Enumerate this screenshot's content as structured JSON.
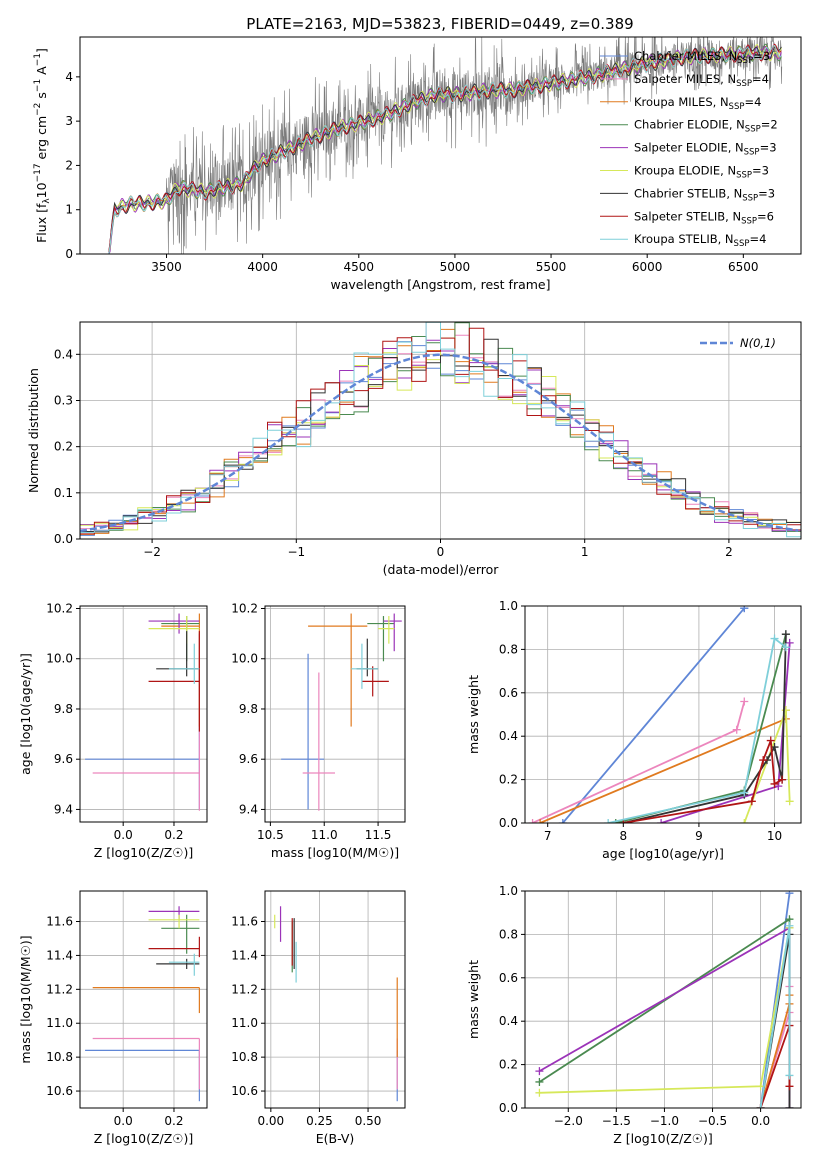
{
  "figure": {
    "title": "PLATE=2163, MJD=53823, FIBERID=0449, z=0.389"
  },
  "colors": {
    "Chabrier MILES": "#5f86d6",
    "Salpeter MILES": "#ec86bd",
    "Kroupa MILES": "#e07a1f",
    "Chabrier ELODIE": "#4a8a50",
    "Salpeter ELODIE": "#9b33b8",
    "Kroupa ELODIE": "#d6e85a",
    "Chabrier STELIB": "#333333",
    "Salpeter STELIB": "#b01515",
    "Kroupa STELIB": "#7fcfd9",
    "data": "#7a7a7a"
  },
  "chart_data": [
    {
      "id": "spectrum",
      "type": "line",
      "xlabel": "wavelength [Angstrom, rest frame]",
      "ylabel_parts": [
        "Flux [f",
        "λ",
        "10",
        "−17",
        " erg cm",
        "−2",
        " s",
        "−1",
        " A",
        "−1",
        "]"
      ],
      "xlim": [
        3050,
        6800
      ],
      "ylim": [
        0,
        4.9
      ],
      "xticks": [
        3500,
        4000,
        4500,
        5000,
        5500,
        6000,
        6500
      ],
      "yticks": [
        0,
        1,
        2,
        3,
        4
      ],
      "legend_position": "top-right",
      "legend": [
        {
          "model": "Chabrier MILES",
          "label": "Chabrier MILES, N",
          "sub": "SSP",
          "n": "=3"
        },
        {
          "model": "Salpeter MILES",
          "label": "Salpeter MILES, N",
          "sub": "SSP",
          "n": "=4"
        },
        {
          "model": "Kroupa MILES",
          "label": "Kroupa MILES, N",
          "sub": "SSP",
          "n": "=4"
        },
        {
          "model": "Chabrier ELODIE",
          "label": "Chabrier ELODIE, N",
          "sub": "SSP",
          "n": "=2"
        },
        {
          "model": "Salpeter ELODIE",
          "label": "Salpeter ELODIE, N",
          "sub": "SSP",
          "n": "=3"
        },
        {
          "model": "Kroupa ELODIE",
          "label": "Kroupa ELODIE, N",
          "sub": "SSP",
          "n": "=3"
        },
        {
          "model": "Chabrier STELIB",
          "label": "Chabrier STELIB, N",
          "sub": "SSP",
          "n": "=3"
        },
        {
          "model": "Salpeter STELIB",
          "label": "Salpeter STELIB, N",
          "sub": "SSP",
          "n": "=6"
        },
        {
          "model": "Kroupa STELIB",
          "label": "Kroupa STELIB, N",
          "sub": "SSP",
          "n": "=4"
        }
      ],
      "continuum_knots": {
        "x": [
          3200,
          3230,
          3300,
          3400,
          3500,
          3560,
          3700,
          3800,
          3900,
          3950,
          4000,
          4100,
          4250,
          4400,
          4500,
          4650,
          4800,
          4900,
          5000,
          5200,
          5300,
          5500,
          5700,
          5900,
          6000,
          6200,
          6400,
          6600,
          6700
        ],
        "y": [
          0.0,
          1.0,
          1.12,
          1.15,
          1.2,
          1.5,
          1.4,
          1.5,
          1.6,
          1.9,
          2.1,
          2.3,
          2.6,
          2.85,
          2.95,
          3.15,
          3.45,
          3.6,
          3.6,
          3.7,
          3.7,
          3.85,
          4.0,
          4.2,
          4.3,
          4.45,
          4.5,
          4.55,
          4.55
        ]
      }
    },
    {
      "id": "residuals",
      "type": "histogram",
      "xlabel": "(data-model)/error",
      "ylabel": "Normed distribution",
      "xlim": [
        -2.5,
        2.5
      ],
      "ylim": [
        0,
        0.47
      ],
      "xticks": [
        -2,
        -1,
        0,
        1,
        2
      ],
      "yticks": [
        0.0,
        0.1,
        0.2,
        0.3,
        0.4
      ],
      "bin_width": 0.1,
      "legend_position": "top-right",
      "reference": {
        "label": "N(0,1)",
        "mu": 0,
        "sigma": 1
      }
    },
    {
      "id": "age_vs_Z",
      "type": "errorbar",
      "xlabel": "Z [log10(Z/Z☉)]",
      "ylabel": "age [log10(age/yr)]",
      "xlim": [
        -0.17,
        0.33
      ],
      "ylim": [
        9.35,
        10.21
      ],
      "xticks": [
        0.0,
        0.2
      ],
      "yticks": [
        9.4,
        9.6,
        9.8,
        10.0,
        10.2
      ],
      "points": [
        {
          "model": "Chabrier MILES",
          "x": 0.3,
          "xerr": [
            0.45,
            0.0
          ],
          "y": 9.6,
          "yerr": [
            0.2,
            0.5
          ]
        },
        {
          "model": "Salpeter MILES",
          "x": 0.3,
          "xerr": [
            0.42,
            0.0
          ],
          "y": 9.545,
          "yerr": [
            0.15,
            0.55
          ]
        },
        {
          "model": "Kroupa MILES",
          "x": 0.3,
          "xerr": [
            0.15,
            0.0
          ],
          "y": 10.13,
          "yerr": [
            0.4,
            0.05
          ]
        },
        {
          "model": "Chabrier ELODIE",
          "x": 0.25,
          "xerr": [
            0.1,
            0.05
          ],
          "y": 10.14,
          "yerr": [
            0.15,
            0.03
          ]
        },
        {
          "model": "Salpeter ELODIE",
          "x": 0.22,
          "xerr": [
            0.12,
            0.08
          ],
          "y": 10.15,
          "yerr": [
            0.05,
            0.03
          ]
        },
        {
          "model": "Kroupa ELODIE",
          "x": 0.25,
          "xerr": [
            0.15,
            0.05
          ],
          "y": 10.12,
          "yerr": [
            0.06,
            0.05
          ]
        },
        {
          "model": "Chabrier STELIB",
          "x": 0.25,
          "xerr": [
            0.12,
            0.05
          ],
          "y": 9.96,
          "yerr": [
            0.03,
            0.15
          ]
        },
        {
          "model": "Salpeter STELIB",
          "x": 0.3,
          "xerr": [
            0.2,
            0.0
          ],
          "y": 9.91,
          "yerr": [
            0.2,
            0.2
          ]
        },
        {
          "model": "Kroupa STELIB",
          "x": 0.28,
          "xerr": [
            0.1,
            0.02
          ],
          "y": 9.96,
          "yerr": [
            0.06,
            0.1
          ]
        }
      ]
    },
    {
      "id": "age_vs_mass",
      "type": "errorbar",
      "xlabel": "mass [log10(M/M☉)]",
      "xlim": [
        10.45,
        11.75
      ],
      "ylim": [
        9.35,
        10.21
      ],
      "xticks": [
        10.5,
        11.0,
        11.5
      ],
      "yticks": [
        9.4,
        9.6,
        9.8,
        10.0,
        10.2
      ],
      "points": [
        {
          "model": "Chabrier MILES",
          "x": 10.85,
          "xerr": [
            0.25,
            0.15
          ],
          "y": 9.6,
          "yerr": [
            0.2,
            0.42
          ]
        },
        {
          "model": "Salpeter MILES",
          "x": 10.95,
          "xerr": [
            0.15,
            0.15
          ],
          "y": 9.545,
          "yerr": [
            0.15,
            0.4
          ]
        },
        {
          "model": "Kroupa MILES",
          "x": 11.25,
          "xerr": [
            0.4,
            0.15
          ],
          "y": 10.13,
          "yerr": [
            0.4,
            0.05
          ]
        },
        {
          "model": "Chabrier ELODIE",
          "x": 11.55,
          "xerr": [
            0.15,
            0.1
          ],
          "y": 10.14,
          "yerr": [
            0.15,
            0.03
          ]
        },
        {
          "model": "Salpeter ELODIE",
          "x": 11.65,
          "xerr": [
            0.1,
            0.07
          ],
          "y": 10.15,
          "yerr": [
            0.12,
            0.03
          ]
        },
        {
          "model": "Kroupa ELODIE",
          "x": 11.6,
          "xerr": [
            0.1,
            0.05
          ],
          "y": 10.12,
          "yerr": [
            0.06,
            0.05
          ]
        },
        {
          "model": "Chabrier STELIB",
          "x": 11.4,
          "xerr": [
            0.1,
            0.1
          ],
          "y": 9.96,
          "yerr": [
            0.03,
            0.12
          ]
        },
        {
          "model": "Salpeter STELIB",
          "x": 11.45,
          "xerr": [
            0.1,
            0.15
          ],
          "y": 9.91,
          "yerr": [
            0.06,
            0.06
          ]
        },
        {
          "model": "Kroupa STELIB",
          "x": 11.35,
          "xerr": [
            0.1,
            0.15
          ],
          "y": 9.96,
          "yerr": [
            0.08,
            0.1
          ]
        }
      ]
    },
    {
      "id": "weight_vs_age",
      "type": "line",
      "xlabel": "age [log10(age/yr)]",
      "ylabel": "mass weight",
      "xlim": [
        6.7,
        10.35
      ],
      "ylim": [
        0,
        1.0
      ],
      "xticks": [
        7,
        8,
        9,
        10
      ],
      "yticks": [
        0.0,
        0.2,
        0.4,
        0.6,
        0.8,
        1.0
      ],
      "series": [
        {
          "model": "Chabrier MILES",
          "x": [
            7.2,
            9.6,
            9.6
          ],
          "y": [
            0.0,
            0.99,
            0.99
          ]
        },
        {
          "model": "Salpeter MILES",
          "x": [
            6.8,
            9.5,
            9.6
          ],
          "y": [
            0.0,
            0.43,
            0.56
          ]
        },
        {
          "model": "Kroupa MILES",
          "x": [
            6.9,
            10.15,
            10.15
          ],
          "y": [
            0.0,
            0.48,
            0.52
          ]
        },
        {
          "model": "Chabrier ELODIE",
          "x": [
            7.9,
            9.6,
            10.15
          ],
          "y": [
            0.0,
            0.15,
            0.87
          ]
        },
        {
          "model": "Salpeter ELODIE",
          "x": [
            8.5,
            10.05,
            10.2
          ],
          "y": [
            0.0,
            0.17,
            0.83
          ]
        },
        {
          "model": "Kroupa ELODIE",
          "x": [
            9.6,
            10.15,
            10.2
          ],
          "y": [
            0.0,
            0.52,
            0.1
          ]
        },
        {
          "model": "Chabrier STELIB",
          "x": [
            8.0,
            9.6,
            9.9,
            10.0,
            10.1,
            10.15
          ],
          "y": [
            0.0,
            0.13,
            0.29,
            0.35,
            0.2,
            0.87
          ]
        },
        {
          "model": "Salpeter STELIB",
          "x": [
            8.0,
            9.7,
            9.85,
            9.95,
            10.0,
            10.1
          ],
          "y": [
            0.0,
            0.1,
            0.29,
            0.38,
            0.18,
            0.2
          ]
        },
        {
          "model": "Kroupa STELIB",
          "x": [
            7.8,
            9.6,
            10.0,
            10.15
          ],
          "y": [
            0.0,
            0.14,
            0.85,
            0.81
          ]
        }
      ]
    },
    {
      "id": "mass_vs_Z",
      "type": "errorbar",
      "xlabel": "Z [log10(Z/Z☉)]",
      "ylabel": "mass [log10(M/M☉)]",
      "xlim": [
        -0.17,
        0.33
      ],
      "ylim": [
        10.5,
        11.78
      ],
      "xticks": [
        0.0,
        0.2
      ],
      "yticks": [
        10.6,
        10.8,
        11.0,
        11.2,
        11.4,
        11.6
      ],
      "points": [
        {
          "model": "Chabrier MILES",
          "x": 0.3,
          "xerr": [
            0.45,
            0.0
          ],
          "y": 10.84,
          "yerr": [
            0.3,
            0.0
          ]
        },
        {
          "model": "Salpeter MILES",
          "x": 0.3,
          "xerr": [
            0.42,
            0.0
          ],
          "y": 10.91,
          "yerr": [
            0.3,
            0.0
          ]
        },
        {
          "model": "Kroupa MILES",
          "x": 0.3,
          "xerr": [
            0.42,
            0.0
          ],
          "y": 11.21,
          "yerr": [
            0.15,
            0.0
          ]
        },
        {
          "model": "Chabrier ELODIE",
          "x": 0.25,
          "xerr": [
            0.1,
            0.05
          ],
          "y": 11.56,
          "yerr": [
            0.15,
            0.08
          ]
        },
        {
          "model": "Salpeter ELODIE",
          "x": 0.22,
          "xerr": [
            0.12,
            0.08
          ],
          "y": 11.66,
          "yerr": [
            0.05,
            0.03
          ]
        },
        {
          "model": "Kroupa ELODIE",
          "x": 0.22,
          "xerr": [
            0.12,
            0.08
          ],
          "y": 11.61,
          "yerr": [
            0.05,
            0.03
          ]
        },
        {
          "model": "Chabrier STELIB",
          "x": 0.25,
          "xerr": [
            0.12,
            0.05
          ],
          "y": 11.35,
          "yerr": [
            0.03,
            0.03
          ]
        },
        {
          "model": "Salpeter STELIB",
          "x": 0.3,
          "xerr": [
            0.2,
            0.0
          ],
          "y": 11.44,
          "yerr": [
            0.05,
            0.07
          ]
        },
        {
          "model": "Kroupa STELIB",
          "x": 0.28,
          "xerr": [
            0.1,
            0.02
          ],
          "y": 11.36,
          "yerr": [
            0.08,
            0.05
          ]
        }
      ]
    },
    {
      "id": "mass_vs_ebv",
      "type": "errorbar",
      "xlabel": "E(B-V)",
      "xlim": [
        -0.03,
        0.69
      ],
      "ylim": [
        10.5,
        11.78
      ],
      "xticks": [
        0.0,
        0.25,
        0.5
      ],
      "yticks": [
        10.6,
        10.8,
        11.0,
        11.2,
        11.4,
        11.6
      ],
      "points": [
        {
          "model": "Chabrier MILES",
          "x": 0.65,
          "xerr": [
            0,
            0
          ],
          "y": 10.84,
          "yerr": [
            0.3,
            0.0
          ]
        },
        {
          "model": "Salpeter MILES",
          "x": 0.65,
          "xerr": [
            0,
            0
          ],
          "y": 10.91,
          "yerr": [
            0.3,
            0.0
          ]
        },
        {
          "model": "Kroupa MILES",
          "x": 0.65,
          "xerr": [
            0,
            0
          ],
          "y": 11.0,
          "yerr": [
            0.2,
            0.27
          ]
        },
        {
          "model": "Chabrier ELODIE",
          "x": 0.11,
          "xerr": [
            0,
            0
          ],
          "y": 11.45,
          "yerr": [
            0.15,
            0.15
          ]
        },
        {
          "model": "Salpeter ELODIE",
          "x": 0.05,
          "xerr": [
            0,
            0
          ],
          "y": 11.58,
          "yerr": [
            0.1,
            0.11
          ]
        },
        {
          "model": "Kroupa ELODIE",
          "x": 0.02,
          "xerr": [
            0,
            0
          ],
          "y": 11.61,
          "yerr": [
            0.05,
            0.03
          ]
        },
        {
          "model": "Chabrier STELIB",
          "x": 0.12,
          "xerr": [
            0,
            0
          ],
          "y": 11.47,
          "yerr": [
            0.15,
            0.15
          ]
        },
        {
          "model": "Salpeter STELIB",
          "x": 0.11,
          "xerr": [
            0,
            0
          ],
          "y": 11.48,
          "yerr": [
            0.14,
            0.14
          ]
        },
        {
          "model": "Kroupa STELIB",
          "x": 0.13,
          "xerr": [
            0,
            0
          ],
          "y": 11.36,
          "yerr": [
            0.12,
            0.12
          ]
        }
      ]
    },
    {
      "id": "weight_vs_Z",
      "type": "line",
      "xlabel": "Z [log10(Z/Z☉)]",
      "ylabel": "mass weight",
      "xlim": [
        -2.45,
        0.42
      ],
      "ylim": [
        0,
        1.0
      ],
      "xticks": [
        -2.0,
        -1.5,
        -1.0,
        -0.5,
        0.0
      ],
      "yticks": [
        0.0,
        0.2,
        0.4,
        0.6,
        0.8,
        1.0
      ],
      "series": [
        {
          "model": "Chabrier MILES",
          "x": [
            0.0,
            0.3
          ],
          "y": [
            0.0,
            0.99
          ]
        },
        {
          "model": "Salpeter MILES",
          "x": [
            0.0,
            0.3,
            0.3
          ],
          "y": [
            0.0,
            0.44,
            0.56
          ]
        },
        {
          "model": "Kroupa MILES",
          "x": [
            0.0,
            0.3,
            0.3
          ],
          "y": [
            0.0,
            0.48,
            0.52
          ]
        },
        {
          "model": "Chabrier ELODIE",
          "x": [
            -2.3,
            0.3,
            0.3
          ],
          "y": [
            0.12,
            0.87,
            0.0
          ]
        },
        {
          "model": "Salpeter ELODIE",
          "x": [
            -2.3,
            0.3,
            0.3
          ],
          "y": [
            0.17,
            0.83,
            0.0
          ]
        },
        {
          "model": "Kroupa ELODIE",
          "x": [
            -2.3,
            0.0,
            0.3
          ],
          "y": [
            0.07,
            0.1,
            0.83
          ]
        },
        {
          "model": "Chabrier STELIB",
          "x": [
            0.0,
            0.3,
            0.3
          ],
          "y": [
            0.0,
            0.8,
            0.0
          ]
        },
        {
          "model": "Salpeter STELIB",
          "x": [
            0.0,
            0.3,
            0.3
          ],
          "y": [
            0.0,
            0.38,
            0.1
          ]
        },
        {
          "model": "Kroupa STELIB",
          "x": [
            0.0,
            0.3,
            0.3
          ],
          "y": [
            0.0,
            0.84,
            0.15
          ]
        }
      ]
    }
  ]
}
